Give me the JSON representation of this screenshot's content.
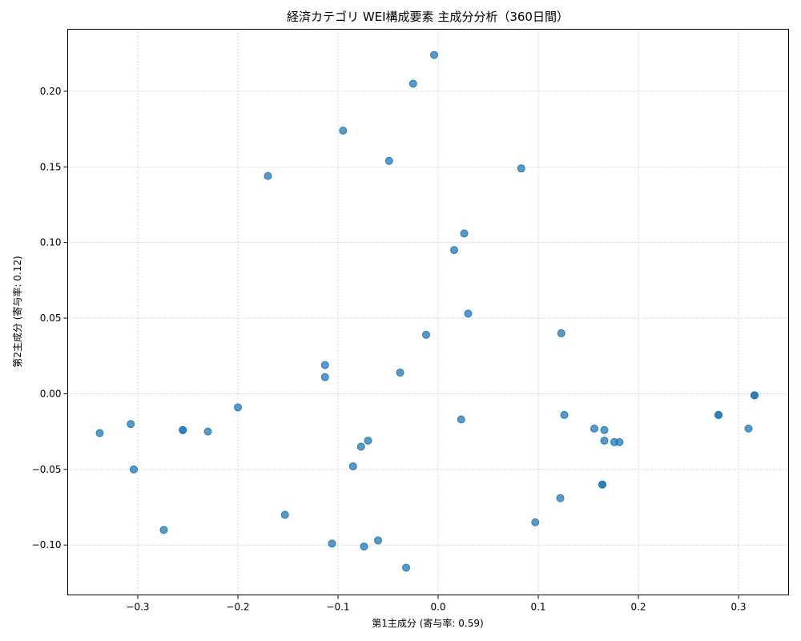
{
  "chart_data": {
    "type": "scatter",
    "title": "経済カテゴリ WEI構成要素 主成分分析（360日間）",
    "xlabel": "第1主成分 (寄与率: 0.59)",
    "ylabel": "第2主成分 (寄与率: 0.12)",
    "xlim": [
      -0.37,
      0.35
    ],
    "ylim": [
      -0.133,
      0.241
    ],
    "xticks": [
      -0.3,
      -0.2,
      -0.1,
      0.0,
      0.1,
      0.2,
      0.3
    ],
    "xtick_labels": [
      "−0.3",
      "−0.2",
      "−0.1",
      "0.0",
      "0.1",
      "0.2",
      "0.3"
    ],
    "yticks": [
      -0.1,
      -0.05,
      0.0,
      0.05,
      0.1,
      0.15,
      0.2
    ],
    "ytick_labels": [
      "−0.10",
      "−0.05",
      "0.00",
      "0.05",
      "0.10",
      "0.15",
      "0.20"
    ],
    "grid": true,
    "point_color": "#1f77b4",
    "points": [
      {
        "x": -0.004,
        "y": 0.224
      },
      {
        "x": -0.025,
        "y": 0.205
      },
      {
        "x": -0.095,
        "y": 0.174
      },
      {
        "x": -0.049,
        "y": 0.154
      },
      {
        "x": 0.083,
        "y": 0.149
      },
      {
        "x": -0.17,
        "y": 0.144
      },
      {
        "x": 0.026,
        "y": 0.106
      },
      {
        "x": 0.016,
        "y": 0.095
      },
      {
        "x": 0.03,
        "y": 0.053
      },
      {
        "x": 0.123,
        "y": 0.04
      },
      {
        "x": -0.012,
        "y": 0.039
      },
      {
        "x": -0.113,
        "y": 0.019
      },
      {
        "x": -0.113,
        "y": 0.011
      },
      {
        "x": -0.038,
        "y": 0.014
      },
      {
        "x": 0.316,
        "y": -0.001
      },
      {
        "x": 0.316,
        "y": -0.001
      },
      {
        "x": -0.2,
        "y": -0.009
      },
      {
        "x": 0.28,
        "y": -0.014
      },
      {
        "x": 0.28,
        "y": -0.014
      },
      {
        "x": 0.126,
        "y": -0.014
      },
      {
        "x": 0.023,
        "y": -0.017
      },
      {
        "x": -0.307,
        "y": -0.02
      },
      {
        "x": 0.31,
        "y": -0.023
      },
      {
        "x": 0.156,
        "y": -0.023
      },
      {
        "x": 0.166,
        "y": -0.024
      },
      {
        "x": -0.255,
        "y": -0.024
      },
      {
        "x": -0.255,
        "y": -0.024
      },
      {
        "x": -0.23,
        "y": -0.025
      },
      {
        "x": -0.338,
        "y": -0.026
      },
      {
        "x": -0.07,
        "y": -0.031
      },
      {
        "x": 0.166,
        "y": -0.031
      },
      {
        "x": 0.176,
        "y": -0.032
      },
      {
        "x": 0.181,
        "y": -0.032
      },
      {
        "x": -0.077,
        "y": -0.035
      },
      {
        "x": -0.085,
        "y": -0.048
      },
      {
        "x": -0.304,
        "y": -0.05
      },
      {
        "x": 0.164,
        "y": -0.06
      },
      {
        "x": 0.164,
        "y": -0.06
      },
      {
        "x": 0.122,
        "y": -0.069
      },
      {
        "x": -0.153,
        "y": -0.08
      },
      {
        "x": 0.097,
        "y": -0.085
      },
      {
        "x": -0.274,
        "y": -0.09
      },
      {
        "x": -0.06,
        "y": -0.097
      },
      {
        "x": -0.106,
        "y": -0.099
      },
      {
        "x": -0.074,
        "y": -0.101
      },
      {
        "x": -0.032,
        "y": -0.115
      }
    ]
  }
}
